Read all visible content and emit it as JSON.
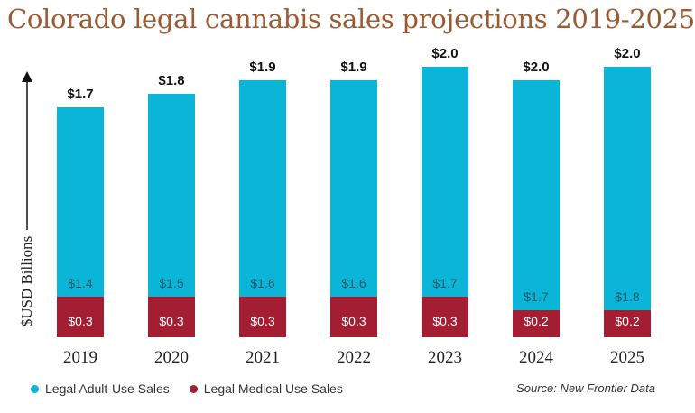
{
  "chart_data": {
    "type": "bar",
    "stacked": true,
    "title": "Colorado legal cannabis sales projections 2019-2025",
    "ylabel": "$USD Billions",
    "categories": [
      "2019",
      "2020",
      "2021",
      "2022",
      "2023",
      "2024",
      "2025"
    ],
    "totals": [
      1.7,
      1.8,
      1.9,
      1.9,
      2.0,
      2.0,
      2.0
    ],
    "total_labels": [
      "$1.7",
      "$1.8",
      "$1.9",
      "$1.9",
      "$2.0",
      "$2.0",
      "$2.0"
    ],
    "series": [
      {
        "name": "Legal Medical Use Sales",
        "color": "#a41e33",
        "values": [
          0.3,
          0.3,
          0.3,
          0.3,
          0.3,
          0.2,
          0.2
        ],
        "labels": [
          "$0.3",
          "$0.3",
          "$0.3",
          "$0.3",
          "$0.3",
          "$0.2",
          "$0.2"
        ]
      },
      {
        "name": "Legal Adult-Use Sales",
        "color": "#0bb5d8",
        "values": [
          1.4,
          1.5,
          1.6,
          1.6,
          1.7,
          1.7,
          1.8
        ],
        "labels": [
          "$1.4",
          "$1.5",
          "$1.6",
          "$1.6",
          "$1.7",
          "$1.7",
          "$1.8"
        ]
      }
    ],
    "legend_position": "bottom-left",
    "grid": false,
    "source": "Source: New Frontier Data"
  }
}
